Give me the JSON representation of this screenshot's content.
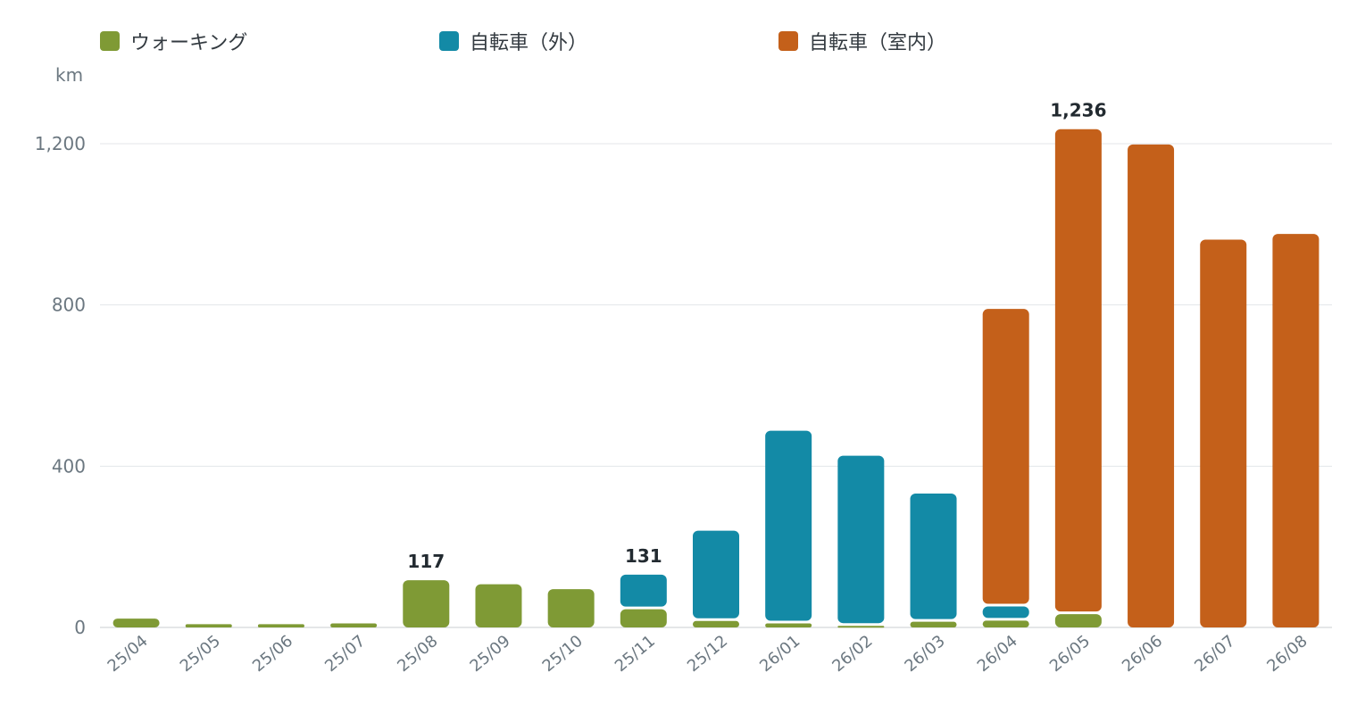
{
  "chart_data": {
    "type": "bar",
    "stacked": true,
    "unit": "km",
    "categories": [
      "25/04",
      "25/05",
      "25/06",
      "25/07",
      "25/08",
      "25/09",
      "25/10",
      "25/11",
      "25/12",
      "26/01",
      "26/02",
      "26/03",
      "26/04",
      "26/05",
      "26/06",
      "26/07",
      "26/08"
    ],
    "series": [
      {
        "name": "ウォーキング",
        "color": "#7f9a35",
        "values": [
          22,
          8,
          8,
          10,
          117,
          107,
          95,
          45,
          16,
          10,
          4,
          14,
          17,
          33,
          0,
          0,
          0
        ]
      },
      {
        "name": "自転車（外）",
        "color": "#138aa6",
        "values": [
          0,
          0,
          0,
          0,
          0,
          0,
          0,
          86,
          224,
          478,
          422,
          318,
          35,
          0,
          0,
          0,
          0
        ]
      },
      {
        "name": "自転車（室内）",
        "color": "#c4601a",
        "values": [
          0,
          0,
          0,
          0,
          0,
          0,
          0,
          0,
          0,
          0,
          0,
          0,
          738,
          1203,
          1198,
          962,
          976
        ]
      }
    ],
    "data_labels": [
      {
        "category": "25/08",
        "text": "117"
      },
      {
        "category": "25/11",
        "text": "131"
      },
      {
        "category": "26/05",
        "text": "1,236"
      }
    ],
    "y_ticks": [
      0,
      400,
      800,
      1200
    ],
    "y_tick_labels": [
      "0",
      "400",
      "800",
      "1,200"
    ],
    "ylim": [
      0,
      1300
    ],
    "grid": true,
    "legend_position": "top-left"
  }
}
